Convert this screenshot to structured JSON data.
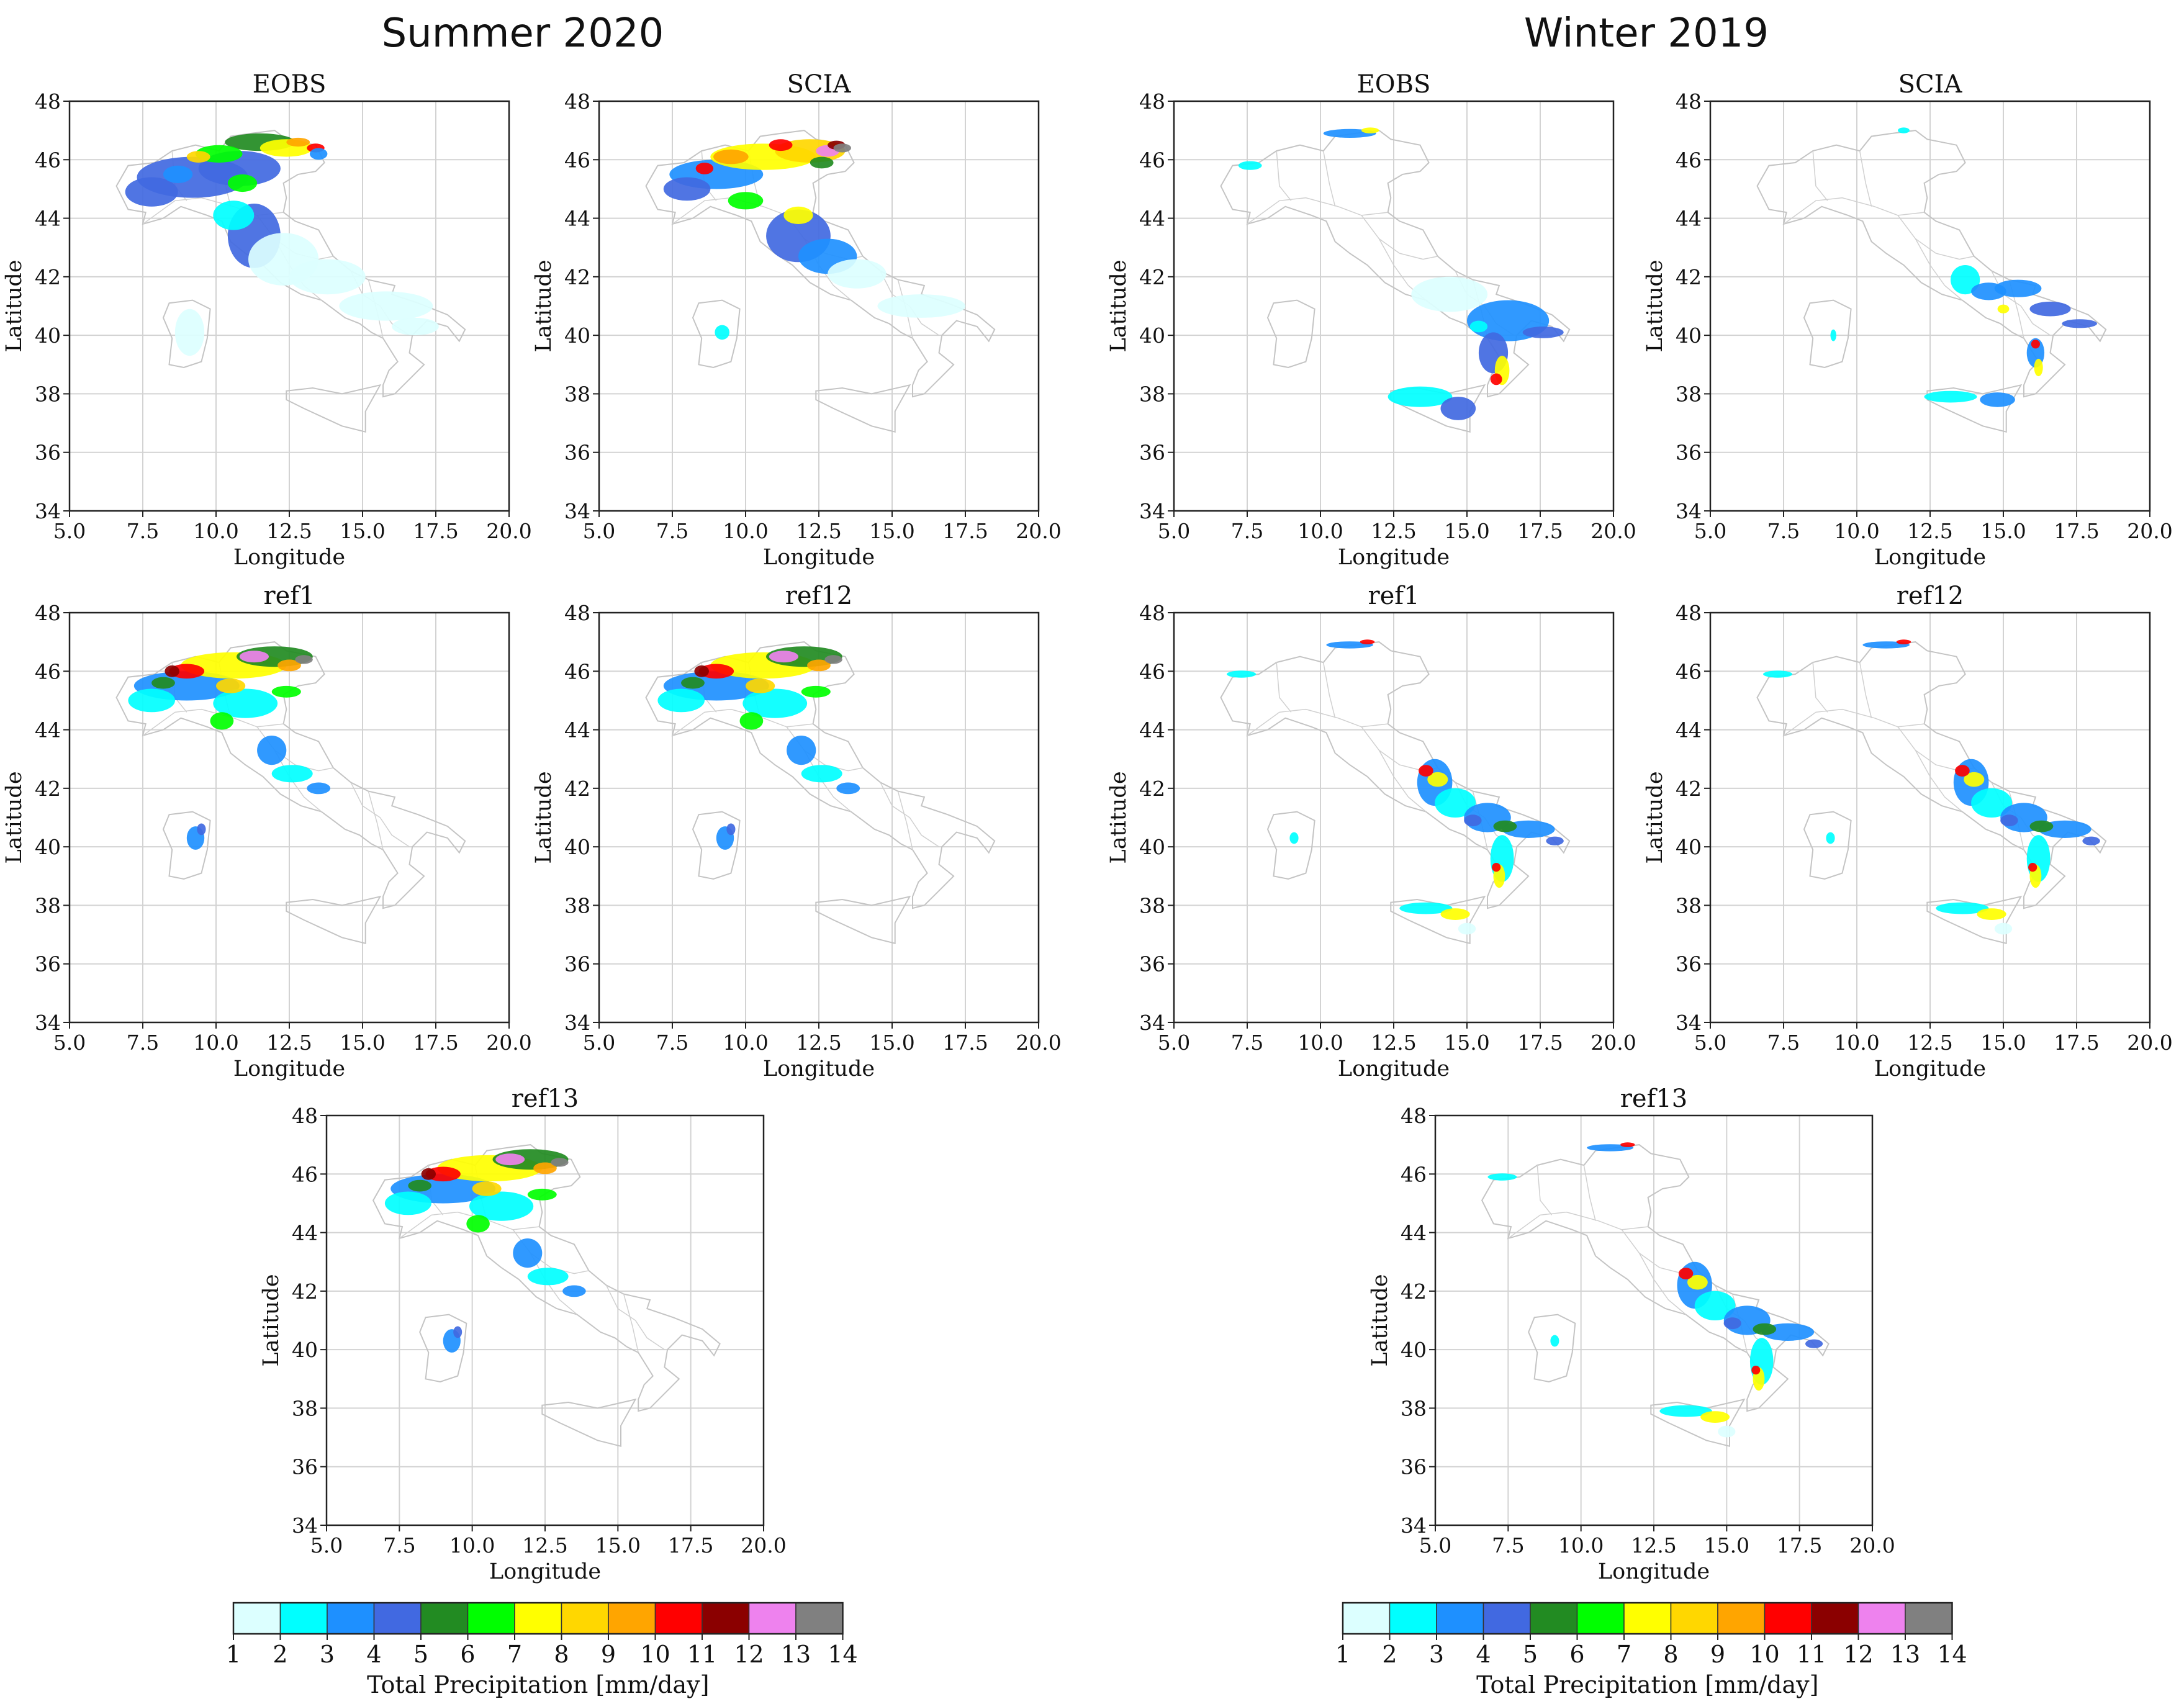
{
  "figure": {
    "section_titles": [
      "Summer 2020",
      "Winter 2019"
    ]
  },
  "chart_data": {
    "type": "heatmap",
    "panels": [
      {
        "section": "Summer 2020",
        "title": "EOBS",
        "xlabel": "Longitude",
        "ylabel": "Latitude",
        "xlim": [
          5.0,
          20.0
        ],
        "ylim": [
          34,
          48
        ],
        "xticks": [
          "5.0",
          "7.5",
          "10.0",
          "12.5",
          "15.0",
          "17.5",
          "20.0"
        ],
        "yticks": [
          "34",
          "36",
          "38",
          "40",
          "42",
          "44",
          "46",
          "48"
        ],
        "pattern": "summer-obs-smooth"
      },
      {
        "section": "Summer 2020",
        "title": "SCIA",
        "xlabel": "Longitude",
        "ylabel": "Latitude",
        "xlim": [
          5.0,
          20.0
        ],
        "ylim": [
          34,
          48
        ],
        "xticks": [
          "5.0",
          "7.5",
          "10.0",
          "12.5",
          "15.0",
          "17.5",
          "20.0"
        ],
        "yticks": [
          "34",
          "36",
          "38",
          "40",
          "42",
          "44",
          "46",
          "48"
        ],
        "pattern": "summer-obs-intense"
      },
      {
        "section": "Winter 2019",
        "title": "EOBS",
        "xlabel": "Longitude",
        "ylabel": "Latitude",
        "xlim": [
          5.0,
          20.0
        ],
        "ylim": [
          34,
          48
        ],
        "xticks": [
          "5.0",
          "7.5",
          "10.0",
          "12.5",
          "15.0",
          "17.5",
          "20.0"
        ],
        "yticks": [
          "34",
          "36",
          "38",
          "40",
          "42",
          "44",
          "46",
          "48"
        ],
        "pattern": "winter-obs-smooth"
      },
      {
        "section": "Winter 2019",
        "title": "SCIA",
        "xlabel": "Longitude",
        "ylabel": "Latitude",
        "xlim": [
          5.0,
          20.0
        ],
        "ylim": [
          34,
          48
        ],
        "xticks": [
          "5.0",
          "7.5",
          "10.0",
          "12.5",
          "15.0",
          "17.5",
          "20.0"
        ],
        "yticks": [
          "34",
          "36",
          "38",
          "40",
          "42",
          "44",
          "46",
          "48"
        ],
        "pattern": "winter-obs-coast"
      },
      {
        "section": "Summer 2020",
        "title": "ref1",
        "xlabel": "Longitude",
        "ylabel": "Latitude",
        "xlim": [
          5.0,
          20.0
        ],
        "ylim": [
          34,
          48
        ],
        "xticks": [
          "5.0",
          "7.5",
          "10.0",
          "12.5",
          "15.0",
          "17.5",
          "20.0"
        ],
        "yticks": [
          "34",
          "36",
          "38",
          "40",
          "42",
          "44",
          "46",
          "48"
        ],
        "pattern": "summer-model"
      },
      {
        "section": "Summer 2020",
        "title": "ref12",
        "xlabel": "Longitude",
        "ylabel": "Latitude",
        "xlim": [
          5.0,
          20.0
        ],
        "ylim": [
          34,
          48
        ],
        "xticks": [
          "5.0",
          "7.5",
          "10.0",
          "12.5",
          "15.0",
          "17.5",
          "20.0"
        ],
        "yticks": [
          "34",
          "36",
          "38",
          "40",
          "42",
          "44",
          "46",
          "48"
        ],
        "pattern": "summer-model"
      },
      {
        "section": "Winter 2019",
        "title": "ref1",
        "xlabel": "Longitude",
        "ylabel": "Latitude",
        "xlim": [
          5.0,
          20.0
        ],
        "ylim": [
          34,
          48
        ],
        "xticks": [
          "5.0",
          "7.5",
          "10.0",
          "12.5",
          "15.0",
          "17.5",
          "20.0"
        ],
        "yticks": [
          "34",
          "36",
          "38",
          "40",
          "42",
          "44",
          "46",
          "48"
        ],
        "pattern": "winter-model"
      },
      {
        "section": "Winter 2019",
        "title": "ref12",
        "xlabel": "Longitude",
        "ylabel": "Latitude",
        "xlim": [
          5.0,
          20.0
        ],
        "ylim": [
          34,
          48
        ],
        "xticks": [
          "5.0",
          "7.5",
          "10.0",
          "12.5",
          "15.0",
          "17.5",
          "20.0"
        ],
        "yticks": [
          "34",
          "36",
          "38",
          "40",
          "42",
          "44",
          "46",
          "48"
        ],
        "pattern": "winter-model"
      },
      {
        "section": "Summer 2020",
        "title": "ref13",
        "xlabel": "Longitude",
        "ylabel": "Latitude",
        "xlim": [
          5.0,
          20.0
        ],
        "ylim": [
          34,
          48
        ],
        "xticks": [
          "5.0",
          "7.5",
          "10.0",
          "12.5",
          "15.0",
          "17.5",
          "20.0"
        ],
        "yticks": [
          "34",
          "36",
          "38",
          "40",
          "42",
          "44",
          "46",
          "48"
        ],
        "pattern": "summer-model"
      },
      {
        "section": "Winter 2019",
        "title": "ref13",
        "xlabel": "Longitude",
        "ylabel": "Latitude",
        "xlim": [
          5.0,
          20.0
        ],
        "ylim": [
          34,
          48
        ],
        "xticks": [
          "5.0",
          "7.5",
          "10.0",
          "12.5",
          "15.0",
          "17.5",
          "20.0"
        ],
        "yticks": [
          "34",
          "36",
          "38",
          "40",
          "42",
          "44",
          "46",
          "48"
        ],
        "pattern": "winter-model"
      }
    ],
    "colorbar": {
      "label": "Total Precipitation [mm/day]",
      "bounds": [
        "1",
        "2",
        "3",
        "4",
        "5",
        "6",
        "7",
        "8",
        "9",
        "10",
        "11",
        "12",
        "13",
        "14"
      ],
      "colors": [
        "#dcffff",
        "#00ffff",
        "#1e90ff",
        "#4169e1",
        "#228b22",
        "#00ff00",
        "#ffff00",
        "#ffd700",
        "#ffa500",
        "#ff0000",
        "#8b0000",
        "#ee82ee",
        "#808080"
      ]
    }
  }
}
